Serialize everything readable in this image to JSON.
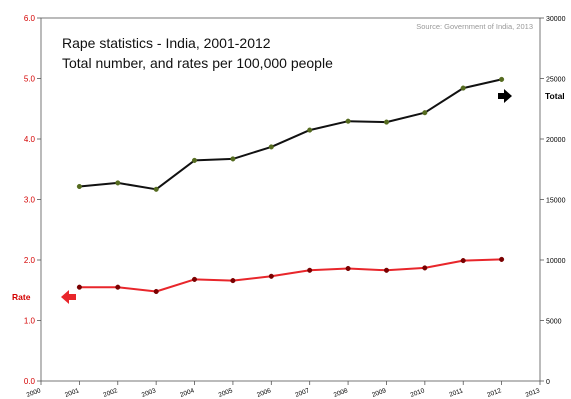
{
  "chart_data": {
    "type": "line",
    "title": "Rape statistics - India, 2001-2012",
    "subtitle": "Total number, and rates per 100,000 people",
    "source": "Source: Government of India, 2013",
    "x_ticks": [
      "2000",
      "2001",
      "2002",
      "2003",
      "2004",
      "2005",
      "2006",
      "2007",
      "2008",
      "2009",
      "2010",
      "2011",
      "2012",
      "2013"
    ],
    "x": [
      "2001",
      "2002",
      "2003",
      "2004",
      "2005",
      "2006",
      "2007",
      "2008",
      "2009",
      "2010",
      "2011",
      "2012"
    ],
    "y_left": {
      "ticks": [
        "0.0",
        "1.0",
        "2.0",
        "3.0",
        "4.0",
        "5.0",
        "6.0"
      ],
      "lim": [
        0,
        6
      ]
    },
    "y_right": {
      "ticks": [
        "0",
        "5000",
        "10000",
        "15000",
        "20000",
        "25000",
        "30000"
      ],
      "lim": [
        0,
        30000
      ]
    },
    "series": [
      {
        "name": "Rate",
        "axis": "left",
        "color": "#e8262b",
        "marker_color": "#7a0000",
        "values": [
          1.55,
          1.55,
          1.48,
          1.68,
          1.66,
          1.73,
          1.83,
          1.86,
          1.83,
          1.87,
          1.99,
          2.01
        ]
      },
      {
        "name": "Total",
        "axis": "right",
        "color": "#111111",
        "marker_color": "#556b1f",
        "values": [
          16075,
          16373,
          15847,
          18233,
          18359,
          19348,
          20737,
          21467,
          21397,
          22172,
          24206,
          24923
        ]
      }
    ]
  }
}
